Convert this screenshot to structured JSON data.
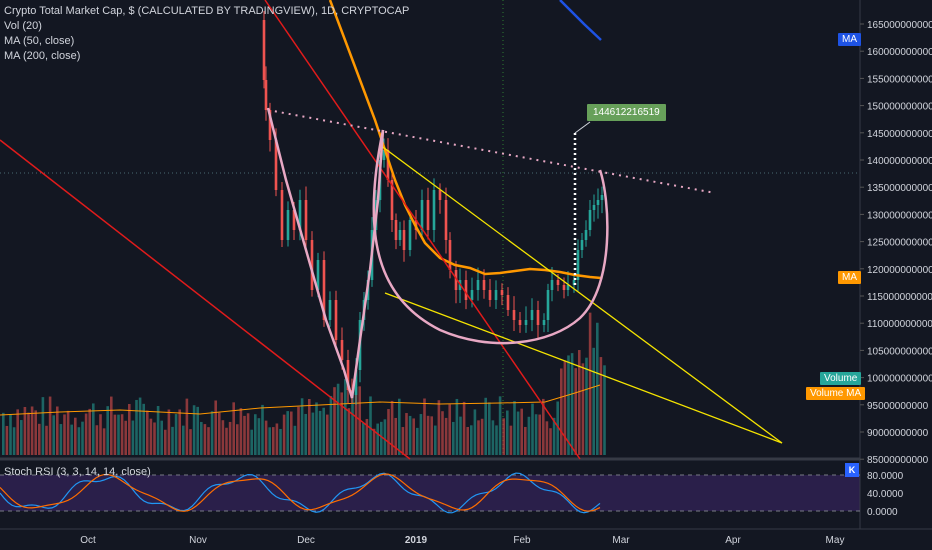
{
  "legend": {
    "title": "Crypto Total Market Cap, $ (CALCULATED BY TRADINGVIEW), 1D, CRYPTOCAP",
    "vol": "Vol (20)",
    "ma50": "MA (50, close)",
    "ma200": "MA (200, close)"
  },
  "rsi_legend": "Stoch RSI (3, 3, 14, 14, close)",
  "tags": {
    "ma_top": "MA",
    "ma_mid": "MA",
    "volume": "Volume",
    "volume_ma": "Volume MA",
    "callout": "144612216519",
    "k_button": "K"
  },
  "colors": {
    "background": "#131722",
    "up_candle": "#26a69a",
    "down_candle": "#ef5350",
    "ma50": "#ff9800",
    "ma200": "#1e53e5",
    "trend_red": "#e01b1b",
    "trend_yellow": "#f5e400",
    "cup": "#e8a8c4"
  },
  "chart_data": [
    {
      "type": "line",
      "y_ticks": [
        "165000000000",
        "160000000000",
        "155000000000",
        "150000000000",
        "145000000000",
        "140000000000",
        "135000000000",
        "130000000000",
        "125000000000",
        "120000000000",
        "115000000000",
        "110000000000",
        "105000000000",
        "100000000000",
        "95000000000",
        "90000000000",
        "85000000000"
      ],
      "x_ticks": [
        "Oct",
        "Nov",
        "Dec",
        "2019",
        "Feb",
        "Mar",
        "Apr",
        "May"
      ],
      "ylim": [
        85000000000,
        168000000000
      ]
    },
    {
      "type": "line",
      "title": "Stoch RSI (3, 3, 14, 14, close)",
      "y_ticks": [
        "80.0000",
        "40.0000",
        "0.0000"
      ],
      "ylim": [
        0,
        100
      ]
    }
  ]
}
